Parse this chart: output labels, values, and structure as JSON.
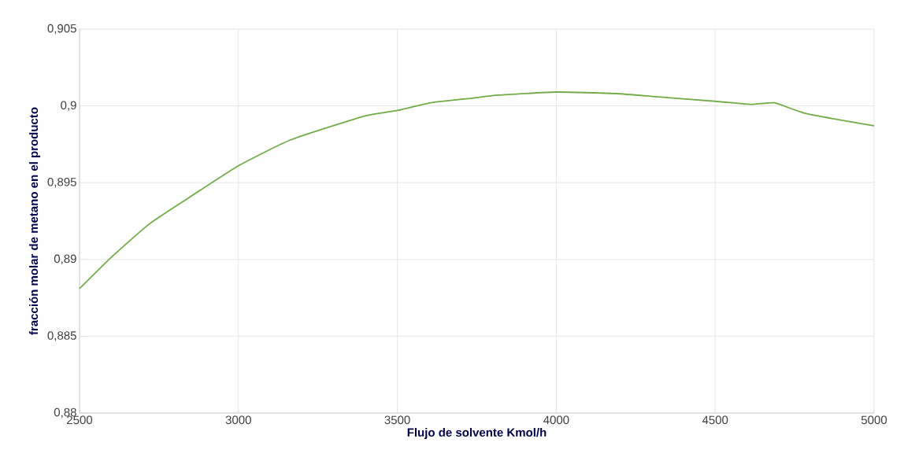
{
  "chart_data": {
    "type": "line",
    "xlabel": "Flujo de solvente Kmol/h",
    "ylabel": "fracción molar de metano en el producto",
    "x": [
      2500,
      2603,
      2719,
      2835,
      3000,
      3166,
      3390,
      3500,
      3605,
      3733,
      3817,
      4000,
      4189,
      4313,
      4500,
      4612,
      4687,
      4786,
      5000
    ],
    "series": [
      {
        "color": "#70ad47",
        "values": [
          0.8881,
          0.8902,
          0.8923,
          0.8939,
          0.8961,
          0.8978,
          0.8993,
          0.8997,
          0.9002,
          0.9005,
          0.9007,
          0.9009,
          0.9008,
          0.9006,
          0.9003,
          0.9001,
          0.9002,
          0.8995,
          0.8987
        ]
      }
    ],
    "xlim": [
      2500,
      5000
    ],
    "xticks": [
      2500,
      3000,
      3500,
      4000,
      4500,
      5000
    ],
    "ylim": [
      0.88,
      0.905
    ],
    "yticks": [
      {
        "value": 0.88,
        "label": "0,88"
      },
      {
        "value": 0.885,
        "label": "0,885"
      },
      {
        "value": 0.89,
        "label": "0,89"
      },
      {
        "value": 0.895,
        "label": "0,895"
      },
      {
        "value": 0.9,
        "label": "0,9"
      },
      {
        "value": 0.905,
        "label": "0,905"
      }
    ],
    "grid": true,
    "marker": "none",
    "line_style": "solid"
  }
}
